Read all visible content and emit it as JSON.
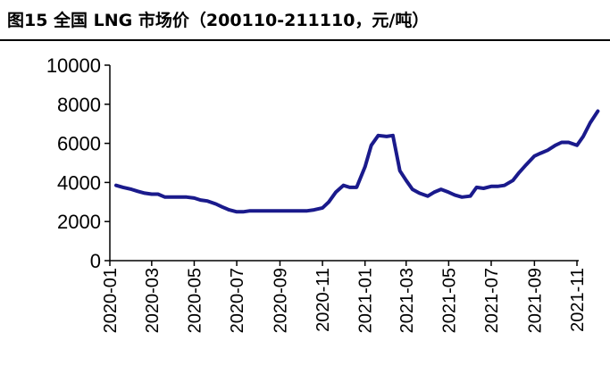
{
  "title": "图15 全国 LNG 市场价（200110-211110，元/吨）",
  "chart_data": {
    "type": "line",
    "title": "图15 全国 LNG 市场价（200110-211110，元/吨）",
    "xlabel": "",
    "ylabel": "",
    "ylim": [
      0,
      10000
    ],
    "yticks": [
      0,
      2000,
      4000,
      6000,
      8000,
      10000
    ],
    "x_ticks": [
      "2020-01",
      "2020-03",
      "2020-05",
      "2020-07",
      "2020-09",
      "2020-11",
      "2021-01",
      "2021-03",
      "2021-05",
      "2021-07",
      "2021-09",
      "2021-11"
    ],
    "grid": false,
    "line_color": "#1a1a8c",
    "series": [
      {
        "name": "",
        "points": [
          [
            "2020-01-10",
            3850
          ],
          [
            "2020-01-20",
            3750
          ],
          [
            "2020-02-01",
            3650
          ],
          [
            "2020-02-10",
            3550
          ],
          [
            "2020-02-20",
            3450
          ],
          [
            "2020-03-01",
            3400
          ],
          [
            "2020-03-10",
            3400
          ],
          [
            "2020-03-20",
            3250
          ],
          [
            "2020-04-01",
            3250
          ],
          [
            "2020-04-10",
            3250
          ],
          [
            "2020-04-20",
            3250
          ],
          [
            "2020-05-01",
            3200
          ],
          [
            "2020-05-10",
            3100
          ],
          [
            "2020-05-20",
            3050
          ],
          [
            "2020-06-01",
            2900
          ],
          [
            "2020-06-10",
            2750
          ],
          [
            "2020-06-20",
            2600
          ],
          [
            "2020-07-01",
            2500
          ],
          [
            "2020-07-10",
            2500
          ],
          [
            "2020-07-20",
            2550
          ],
          [
            "2020-08-01",
            2550
          ],
          [
            "2020-08-10",
            2550
          ],
          [
            "2020-08-20",
            2550
          ],
          [
            "2020-09-01",
            2550
          ],
          [
            "2020-09-10",
            2550
          ],
          [
            "2020-09-20",
            2550
          ],
          [
            "2020-10-01",
            2550
          ],
          [
            "2020-10-10",
            2550
          ],
          [
            "2020-10-20",
            2600
          ],
          [
            "2020-11-01",
            2700
          ],
          [
            "2020-11-10",
            3000
          ],
          [
            "2020-11-20",
            3500
          ],
          [
            "2020-12-01",
            3850
          ],
          [
            "2020-12-10",
            3750
          ],
          [
            "2020-12-20",
            3750
          ],
          [
            "2021-01-01",
            4800
          ],
          [
            "2021-01-10",
            5900
          ],
          [
            "2021-01-20",
            6400
          ],
          [
            "2021-02-01",
            6350
          ],
          [
            "2021-02-10",
            6400
          ],
          [
            "2021-02-20",
            4600
          ],
          [
            "2021-03-01",
            4100
          ],
          [
            "2021-03-10",
            3650
          ],
          [
            "2021-03-20",
            3450
          ],
          [
            "2021-04-01",
            3300
          ],
          [
            "2021-04-10",
            3500
          ],
          [
            "2021-04-20",
            3650
          ],
          [
            "2021-05-01",
            3500
          ],
          [
            "2021-05-10",
            3350
          ],
          [
            "2021-05-20",
            3250
          ],
          [
            "2021-06-01",
            3300
          ],
          [
            "2021-06-10",
            3750
          ],
          [
            "2021-06-20",
            3700
          ],
          [
            "2021-07-01",
            3800
          ],
          [
            "2021-07-10",
            3800
          ],
          [
            "2021-07-20",
            3850
          ],
          [
            "2021-08-01",
            4100
          ],
          [
            "2021-08-10",
            4500
          ],
          [
            "2021-08-20",
            4900
          ],
          [
            "2021-09-01",
            5350
          ],
          [
            "2021-09-10",
            5500
          ],
          [
            "2021-09-20",
            5650
          ],
          [
            "2021-10-01",
            5900
          ],
          [
            "2021-10-10",
            6050
          ],
          [
            "2021-10-20",
            6050
          ],
          [
            "2021-11-01",
            5900
          ],
          [
            "2021-11-10",
            6350
          ],
          [
            "2021-11-20",
            7050
          ],
          [
            "2021-12-01",
            7650
          ]
        ]
      }
    ]
  }
}
